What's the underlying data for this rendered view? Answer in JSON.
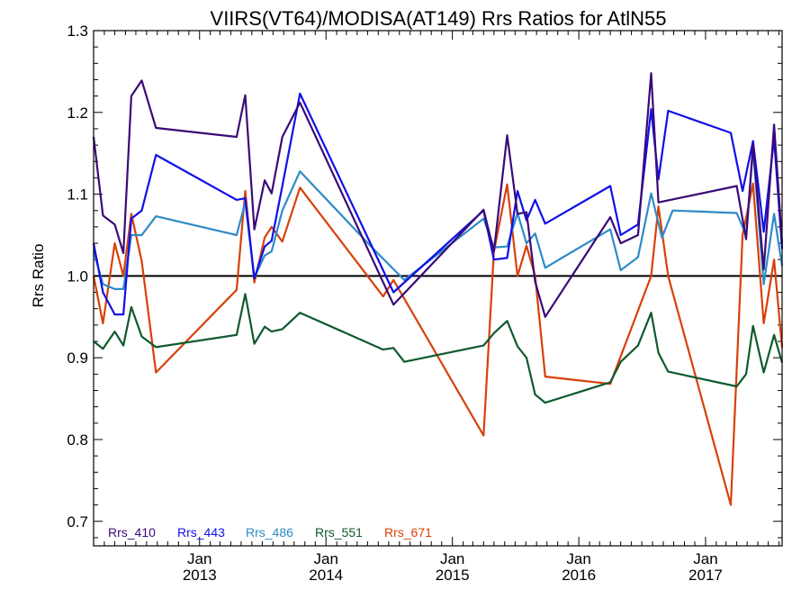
{
  "chart_data": {
    "type": "line",
    "title": "VIIRS(VT64)/MODISA(AT149)  Rrs Ratios for AtlN55",
    "xlabel": "",
    "ylabel": "Rrs Ratio",
    "xlim": [
      "2012-03-01",
      "2017-08-10"
    ],
    "ylim": [
      0.67,
      1.3
    ],
    "yticks": [
      0.7,
      0.8,
      0.9,
      1.0,
      1.1,
      1.2,
      1.3
    ],
    "ytick_labels": [
      "0.7",
      "0.8",
      "0.9",
      "1.0",
      "1.1",
      "1.2",
      "1.3"
    ],
    "xticks": [
      {
        "date": "2013-01-01",
        "line1": "Jan",
        "line2": "2013"
      },
      {
        "date": "2014-01-01",
        "line1": "Jan",
        "line2": "2014"
      },
      {
        "date": "2015-01-01",
        "line1": "Jan",
        "line2": "2015"
      },
      {
        "date": "2016-01-01",
        "line1": "Jan",
        "line2": "2016"
      },
      {
        "date": "2017-01-01",
        "line1": "Jan",
        "line2": "2017"
      }
    ],
    "reference_line": 1.0,
    "legend_position": "bottom-left",
    "series": [
      {
        "name": "Rrs_410",
        "color": "#3a0a78",
        "x": [
          "2012-03-01",
          "2012-03-28",
          "2012-05-01",
          "2012-05-26",
          "2012-06-18",
          "2012-07-18",
          "2012-08-28",
          "2013-04-18",
          "2013-05-13",
          "2013-06-08",
          "2013-07-08",
          "2013-07-28",
          "2013-08-28",
          "2013-10-18",
          "2014-07-15",
          "2015-04-01",
          "2015-05-01",
          "2015-06-08",
          "2015-07-08",
          "2015-08-03",
          "2015-08-28",
          "2015-09-26",
          "2016-04-01",
          "2016-05-01",
          "2016-06-20",
          "2016-07-28",
          "2016-08-18",
          "2017-04-01",
          "2017-04-28",
          "2017-05-18",
          "2017-06-18",
          "2017-07-18",
          "2017-08-10"
        ],
        "values": [
          1.17,
          1.074,
          1.063,
          1.028,
          1.22,
          1.239,
          1.181,
          1.17,
          1.221,
          1.057,
          1.117,
          1.101,
          1.17,
          1.212,
          0.965,
          1.081,
          1.03,
          1.172,
          1.076,
          1.078,
          0.993,
          0.95,
          1.072,
          1.04,
          1.05,
          1.248,
          1.09,
          1.11,
          1.045,
          1.16,
          1.008,
          1.185,
          1.04
        ]
      },
      {
        "name": "Rrs_443",
        "color": "#1010e8",
        "x": [
          "2012-03-01",
          "2012-03-28",
          "2012-05-01",
          "2012-05-26",
          "2012-06-18",
          "2012-07-18",
          "2012-08-28",
          "2013-04-18",
          "2013-05-13",
          "2013-06-08",
          "2013-07-08",
          "2013-07-28",
          "2013-08-28",
          "2013-10-18",
          "2014-07-15",
          "2015-04-01",
          "2015-05-01",
          "2015-06-08",
          "2015-07-08",
          "2015-08-03",
          "2015-08-28",
          "2015-09-26",
          "2016-04-01",
          "2016-05-01",
          "2016-06-20",
          "2016-07-28",
          "2016-08-18",
          "2016-09-15",
          "2017-03-15",
          "2017-04-18",
          "2017-05-18",
          "2017-06-18",
          "2017-07-18",
          "2017-08-10"
        ],
        "values": [
          1.04,
          0.98,
          0.953,
          0.953,
          1.07,
          1.08,
          1.148,
          1.093,
          1.095,
          0.997,
          1.036,
          1.043,
          1.11,
          1.223,
          0.98,
          1.08,
          1.02,
          1.022,
          1.104,
          1.068,
          1.093,
          1.064,
          1.11,
          1.05,
          1.063,
          1.204,
          1.118,
          1.202,
          1.175,
          1.104,
          1.165,
          1.054,
          1.168,
          1.033
        ]
      },
      {
        "name": "Rrs_486",
        "color": "#2e8bc8",
        "x": [
          "2012-03-01",
          "2012-03-28",
          "2012-05-01",
          "2012-05-26",
          "2012-06-18",
          "2012-07-18",
          "2012-08-28",
          "2013-04-18",
          "2013-05-13",
          "2013-06-08",
          "2013-07-08",
          "2013-07-28",
          "2013-08-28",
          "2013-10-18",
          "2014-05-18",
          "2014-08-15",
          "2015-04-01",
          "2015-05-01",
          "2015-06-08",
          "2015-07-08",
          "2015-08-03",
          "2015-08-28",
          "2015-09-26",
          "2016-04-01",
          "2016-05-01",
          "2016-06-20",
          "2016-07-28",
          "2016-08-28",
          "2016-09-28",
          "2017-04-01",
          "2017-04-28",
          "2017-05-18",
          "2017-06-18",
          "2017-07-18",
          "2017-08-10"
        ],
        "values": [
          1.03,
          0.99,
          0.984,
          0.984,
          1.05,
          1.05,
          1.073,
          1.05,
          1.09,
          0.998,
          1.025,
          1.03,
          1.08,
          1.128,
          1.033,
          0.995,
          1.07,
          1.035,
          1.036,
          1.077,
          1.04,
          1.052,
          1.01,
          1.057,
          1.007,
          1.023,
          1.101,
          1.047,
          1.08,
          1.077,
          1.05,
          1.155,
          0.99,
          1.076,
          1.012
        ]
      },
      {
        "name": "Rrs_551",
        "color": "#0e5a2e",
        "x": [
          "2012-03-01",
          "2012-03-28",
          "2012-05-01",
          "2012-05-26",
          "2012-06-18",
          "2012-07-18",
          "2012-08-28",
          "2013-04-18",
          "2013-05-13",
          "2013-06-08",
          "2013-07-08",
          "2013-07-28",
          "2013-08-28",
          "2013-10-18",
          "2014-06-15",
          "2014-07-15",
          "2014-08-15",
          "2015-04-01",
          "2015-05-01",
          "2015-06-08",
          "2015-07-08",
          "2015-08-03",
          "2015-08-28",
          "2015-09-26",
          "2016-04-01",
          "2016-05-01",
          "2016-06-20",
          "2016-07-28",
          "2016-08-18",
          "2016-09-15",
          "2017-04-01",
          "2017-04-28",
          "2017-05-18",
          "2017-06-18",
          "2017-07-18",
          "2017-08-10"
        ],
        "values": [
          0.92,
          0.911,
          0.932,
          0.915,
          0.962,
          0.926,
          0.913,
          0.928,
          0.978,
          0.917,
          0.938,
          0.932,
          0.935,
          0.955,
          0.91,
          0.912,
          0.895,
          0.915,
          0.93,
          0.945,
          0.914,
          0.9,
          0.855,
          0.845,
          0.87,
          0.895,
          0.915,
          0.955,
          0.906,
          0.883,
          0.865,
          0.88,
          0.939,
          0.882,
          0.928,
          0.894
        ]
      },
      {
        "name": "Rrs_671",
        "color": "#d84008",
        "x": [
          "2012-03-01",
          "2012-03-28",
          "2012-05-01",
          "2012-05-26",
          "2012-06-18",
          "2012-07-18",
          "2012-08-28",
          "2013-04-18",
          "2013-05-13",
          "2013-06-08",
          "2013-07-08",
          "2013-07-28",
          "2013-08-28",
          "2013-10-18",
          "2014-06-15",
          "2014-07-15",
          "2015-04-01",
          "2015-05-01",
          "2015-06-08",
          "2015-07-08",
          "2015-08-03",
          "2015-08-28",
          "2015-09-26",
          "2016-04-01",
          "2016-07-28",
          "2016-08-18",
          "2016-09-15",
          "2017-03-15",
          "2017-04-18",
          "2017-05-18",
          "2017-06-18",
          "2017-07-18",
          "2017-08-10"
        ],
        "values": [
          1.0,
          0.942,
          1.04,
          1.0,
          1.076,
          1.018,
          0.882,
          0.983,
          1.104,
          0.992,
          1.047,
          1.06,
          1.042,
          1.108,
          0.975,
          0.995,
          0.805,
          1.03,
          1.112,
          1.0,
          1.037,
          1.0,
          0.877,
          0.868,
          1.0,
          1.085,
          1.0,
          0.72,
          1.05,
          1.113,
          0.942,
          1.02,
          0.912
        ]
      }
    ]
  }
}
